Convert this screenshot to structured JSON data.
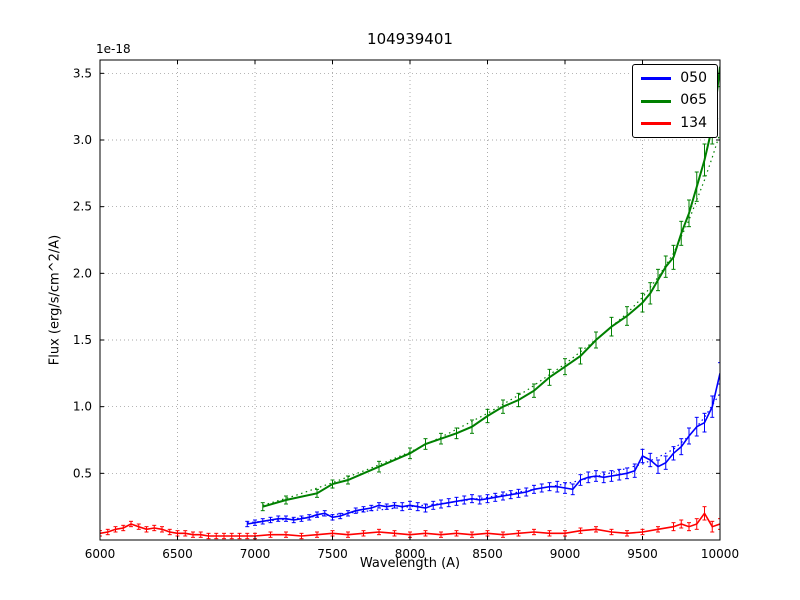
{
  "figure": {
    "title": "104939401",
    "xlabel": "Wavelength (A)",
    "ylabel": "Flux (erg/s/cm^2/A)",
    "offset_text": "1e-18"
  },
  "legend": {
    "entries": [
      {
        "label": "050",
        "color": "#0000ff"
      },
      {
        "label": "065",
        "color": "#008000"
      },
      {
        "label": "134",
        "color": "#ff0000"
      }
    ]
  },
  "chart_data": {
    "type": "line",
    "title": "104939401",
    "xlabel": "Wavelength (A)",
    "ylabel": "Flux (erg/s/cm^2/A)",
    "y_scale_factor": "1e-18",
    "xlim": [
      6000,
      10000
    ],
    "ylim": [
      0,
      3.6
    ],
    "xticks": [
      6000,
      6500,
      7000,
      7500,
      8000,
      8500,
      9000,
      9500,
      10000
    ],
    "yticks": [
      0.5,
      1.0,
      1.5,
      2.0,
      2.5,
      3.0,
      3.5
    ],
    "grid": true,
    "legend_position": "upper right",
    "series": [
      {
        "name": "065",
        "color": "#008000",
        "style": "solid",
        "width": 2,
        "x": [
          7050,
          7200,
          7400,
          7500,
          7600,
          7800,
          8000,
          8100,
          8200,
          8300,
          8400,
          8500,
          8600,
          8700,
          8800,
          8900,
          9000,
          9100,
          9200,
          9300,
          9400,
          9500,
          9550,
          9600,
          9650,
          9700,
          9750,
          9800,
          9850,
          9900,
          9950,
          9975,
          10000
        ],
        "y": [
          0.25,
          0.3,
          0.35,
          0.42,
          0.45,
          0.55,
          0.65,
          0.72,
          0.76,
          0.8,
          0.85,
          0.93,
          1.0,
          1.05,
          1.12,
          1.22,
          1.3,
          1.38,
          1.5,
          1.6,
          1.68,
          1.78,
          1.85,
          1.95,
          2.05,
          2.12,
          2.3,
          2.45,
          2.65,
          2.85,
          3.1,
          3.3,
          3.55
        ],
        "yerr": [
          0.03,
          0.03,
          0.03,
          0.03,
          0.03,
          0.04,
          0.04,
          0.04,
          0.04,
          0.04,
          0.05,
          0.05,
          0.05,
          0.05,
          0.05,
          0.06,
          0.06,
          0.06,
          0.06,
          0.07,
          0.07,
          0.07,
          0.08,
          0.08,
          0.08,
          0.09,
          0.09,
          0.1,
          0.11,
          0.12,
          0.13,
          0.14,
          0.15
        ]
      },
      {
        "name": "065 model",
        "color": "#008000",
        "style": "dotted",
        "width": 1.2,
        "x": [
          7050,
          7250,
          7500,
          7750,
          8000,
          8250,
          8500,
          8750,
          9000,
          9250,
          9400,
          9500,
          9600,
          9700,
          9800,
          9900,
          9950,
          10000
        ],
        "y": [
          0.26,
          0.33,
          0.43,
          0.54,
          0.66,
          0.8,
          0.95,
          1.12,
          1.32,
          1.55,
          1.7,
          1.82,
          1.97,
          2.15,
          2.4,
          2.7,
          2.87,
          3.05
        ]
      },
      {
        "name": "050",
        "color": "#0000ff",
        "style": "solid",
        "width": 1.6,
        "x": [
          6950,
          7000,
          7050,
          7100,
          7150,
          7200,
          7250,
          7300,
          7350,
          7400,
          7450,
          7500,
          7550,
          7600,
          7650,
          7700,
          7750,
          7800,
          7850,
          7900,
          7950,
          8000,
          8050,
          8100,
          8150,
          8200,
          8250,
          8300,
          8350,
          8400,
          8450,
          8500,
          8550,
          8600,
          8650,
          8700,
          8750,
          8800,
          8850,
          8900,
          8950,
          9000,
          9050,
          9100,
          9150,
          9200,
          9250,
          9300,
          9350,
          9400,
          9450,
          9500,
          9550,
          9600,
          9650,
          9700,
          9750,
          9800,
          9850,
          9900,
          9950,
          10000
        ],
        "y": [
          0.12,
          0.13,
          0.14,
          0.15,
          0.16,
          0.16,
          0.15,
          0.16,
          0.17,
          0.19,
          0.2,
          0.17,
          0.18,
          0.2,
          0.22,
          0.23,
          0.24,
          0.26,
          0.25,
          0.26,
          0.25,
          0.26,
          0.25,
          0.24,
          0.26,
          0.27,
          0.28,
          0.29,
          0.3,
          0.31,
          0.3,
          0.31,
          0.32,
          0.33,
          0.34,
          0.35,
          0.36,
          0.38,
          0.39,
          0.4,
          0.4,
          0.39,
          0.38,
          0.45,
          0.47,
          0.48,
          0.47,
          0.48,
          0.49,
          0.5,
          0.52,
          0.63,
          0.6,
          0.55,
          0.58,
          0.65,
          0.7,
          0.78,
          0.85,
          0.88,
          1.0,
          1.25
        ],
        "yerr": [
          0.02,
          0.02,
          0.02,
          0.02,
          0.02,
          0.02,
          0.02,
          0.02,
          0.02,
          0.02,
          0.02,
          0.02,
          0.02,
          0.02,
          0.02,
          0.02,
          0.02,
          0.02,
          0.02,
          0.02,
          0.03,
          0.03,
          0.03,
          0.03,
          0.03,
          0.03,
          0.03,
          0.03,
          0.03,
          0.03,
          0.03,
          0.03,
          0.03,
          0.03,
          0.03,
          0.03,
          0.03,
          0.03,
          0.03,
          0.03,
          0.04,
          0.04,
          0.04,
          0.04,
          0.04,
          0.04,
          0.04,
          0.04,
          0.04,
          0.04,
          0.05,
          0.05,
          0.05,
          0.05,
          0.05,
          0.05,
          0.06,
          0.06,
          0.07,
          0.07,
          0.08,
          0.08
        ]
      },
      {
        "name": "050 model",
        "color": "#0000ff",
        "style": "dotted",
        "width": 1.2,
        "x": [
          6950,
          7250,
          7500,
          7750,
          8000,
          8250,
          8500,
          8750,
          9000,
          9250,
          9500,
          9600,
          9700,
          9800,
          9900,
          10000
        ],
        "y": [
          0.13,
          0.16,
          0.19,
          0.22,
          0.25,
          0.28,
          0.32,
          0.37,
          0.42,
          0.49,
          0.57,
          0.62,
          0.68,
          0.78,
          0.92,
          1.1
        ]
      },
      {
        "name": "134",
        "color": "#ff0000",
        "style": "solid",
        "width": 1.6,
        "x": [
          6000,
          6050,
          6100,
          6150,
          6200,
          6250,
          6300,
          6350,
          6400,
          6450,
          6500,
          6550,
          6600,
          6650,
          6700,
          6750,
          6800,
          6850,
          6900,
          6950,
          7000,
          7100,
          7200,
          7300,
          7400,
          7500,
          7600,
          7700,
          7800,
          7900,
          8000,
          8100,
          8200,
          8300,
          8400,
          8500,
          8600,
          8700,
          8800,
          8900,
          9000,
          9100,
          9200,
          9300,
          9400,
          9500,
          9600,
          9700,
          9750,
          9800,
          9850,
          9900,
          9950,
          10000
        ],
        "y": [
          0.05,
          0.06,
          0.08,
          0.09,
          0.12,
          0.1,
          0.08,
          0.09,
          0.08,
          0.06,
          0.05,
          0.05,
          0.04,
          0.04,
          0.03,
          0.03,
          0.03,
          0.03,
          0.03,
          0.03,
          0.03,
          0.04,
          0.04,
          0.03,
          0.04,
          0.05,
          0.04,
          0.05,
          0.06,
          0.05,
          0.04,
          0.05,
          0.04,
          0.05,
          0.04,
          0.05,
          0.04,
          0.05,
          0.06,
          0.05,
          0.05,
          0.07,
          0.08,
          0.06,
          0.05,
          0.06,
          0.08,
          0.1,
          0.12,
          0.1,
          0.12,
          0.2,
          0.1,
          0.12
        ],
        "yerr": [
          0.02,
          0.02,
          0.02,
          0.02,
          0.02,
          0.02,
          0.02,
          0.02,
          0.02,
          0.02,
          0.02,
          0.02,
          0.02,
          0.02,
          0.02,
          0.02,
          0.02,
          0.02,
          0.02,
          0.02,
          0.02,
          0.02,
          0.02,
          0.02,
          0.02,
          0.02,
          0.02,
          0.02,
          0.02,
          0.02,
          0.02,
          0.02,
          0.02,
          0.02,
          0.02,
          0.02,
          0.02,
          0.02,
          0.02,
          0.02,
          0.02,
          0.02,
          0.02,
          0.02,
          0.02,
          0.02,
          0.02,
          0.03,
          0.03,
          0.03,
          0.04,
          0.05,
          0.04,
          0.04
        ]
      }
    ]
  }
}
